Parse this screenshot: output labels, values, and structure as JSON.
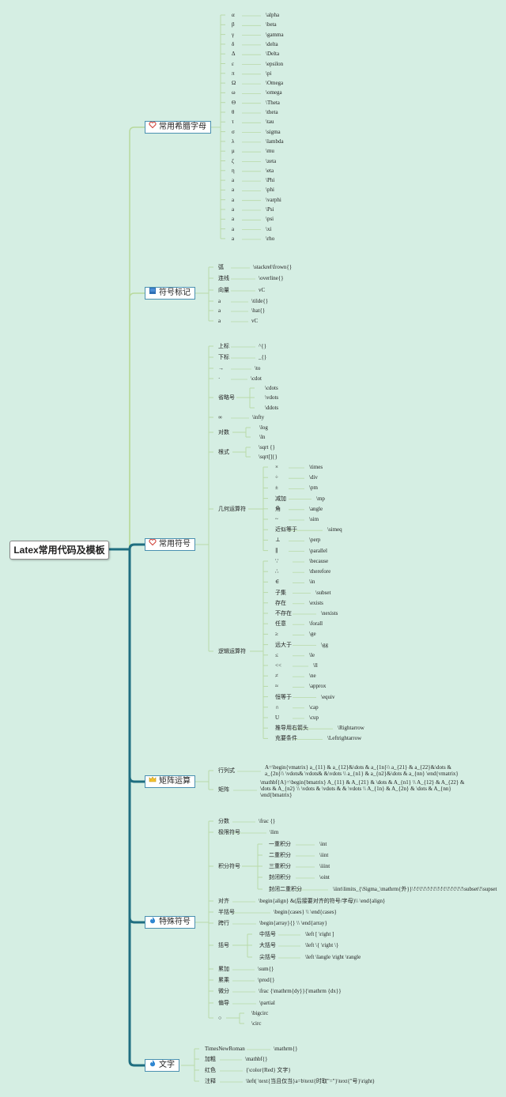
{
  "title": "Latex常用代码及模板",
  "colors": {
    "background": "#d5eee3",
    "trunk": "#1f6e80",
    "branch_light": "#b8d99c",
    "branch_green": "#8fc47a",
    "leaf_line": "#b9d9a8"
  },
  "categories": [
    {
      "label": "常用希腊字母",
      "icon": "heart-icon",
      "items": [
        {
          "a": "α",
          "b": "\\alpha"
        },
        {
          "a": "β",
          "b": "\\beta"
        },
        {
          "a": "γ",
          "b": "\\gamma"
        },
        {
          "a": "δ",
          "b": "\\delta"
        },
        {
          "a": "Δ",
          "b": "\\Delta"
        },
        {
          "a": "ε",
          "b": "\\epsilon"
        },
        {
          "a": "π",
          "b": "\\pi"
        },
        {
          "a": "Ω",
          "b": "\\Omega"
        },
        {
          "a": "ω",
          "b": "\\omega"
        },
        {
          "a": "Θ",
          "b": "\\Theta"
        },
        {
          "a": "θ",
          "b": "\\theta"
        },
        {
          "a": "τ",
          "b": "\\tau"
        },
        {
          "a": "σ",
          "b": "\\sigma"
        },
        {
          "a": "λ",
          "b": "\\lambda"
        },
        {
          "a": "μ",
          "b": "\\mu"
        },
        {
          "a": "ζ",
          "b": "\\zeta"
        },
        {
          "a": "η",
          "b": "\\eta"
        },
        {
          "a": "a",
          "b": "\\Phi"
        },
        {
          "a": "a",
          "b": "\\phi"
        },
        {
          "a": "a",
          "b": "\\varphi"
        },
        {
          "a": "a",
          "b": "\\Psi"
        },
        {
          "a": "a",
          "b": "\\psi"
        },
        {
          "a": "a",
          "b": "\\xi"
        },
        {
          "a": "a",
          "b": "\\rho"
        }
      ]
    },
    {
      "label": "符号标记",
      "icon": "flag-icon",
      "items": [
        {
          "a": "弧",
          "b": "\\stackrel\\frown{}"
        },
        {
          "a": "连线",
          "b": "\\overline{}"
        },
        {
          "a": "向量",
          "b": "vC"
        },
        {
          "a": "a",
          "b": "\\tilde{}"
        },
        {
          "a": "a",
          "b": "\\hat{}"
        },
        {
          "a": "a",
          "b": "vC"
        }
      ]
    },
    {
      "label": "常用符号",
      "icon": "heart-icon",
      "items": [
        {
          "a": "上标",
          "b": "^{}"
        },
        {
          "a": "下标",
          "b": "_{}"
        },
        {
          "a": "→",
          "b": "\\to"
        },
        {
          "a": "·",
          "b": "\\cdot"
        },
        {
          "a": "省略号",
          "children": [
            "\\cdots",
            "\\vdots",
            "\\ddots"
          ]
        },
        {
          "a": "∞",
          "b": "\\infty"
        },
        {
          "a": "对数",
          "children": [
            "\\log",
            "\\ln"
          ]
        },
        {
          "a": "根式",
          "children": [
            "\\sqrt {}",
            "\\sqrt[]{}"
          ]
        },
        {
          "a": "几何运算符",
          "children": [
            {
              "a": "×",
              "b": "\\times"
            },
            {
              "a": "÷",
              "b": "\\div"
            },
            {
              "a": "±",
              "b": "\\pm"
            },
            {
              "a": "减加",
              "b": "\\mp"
            },
            {
              "a": "角",
              "b": "\\angle"
            },
            {
              "a": "~",
              "b": "\\sim"
            },
            {
              "a": "近似等于",
              "b": "\\simeq"
            },
            {
              "a": "⊥",
              "b": "\\perp"
            },
            {
              "a": "∥",
              "b": "\\parallel"
            }
          ]
        },
        {
          "a": "逻辑运算符",
          "children": [
            {
              "a": "∵",
              "b": "\\because"
            },
            {
              "a": "∴",
              "b": "\\therefore"
            },
            {
              "a": "∈",
              "b": "\\in"
            },
            {
              "a": "子集",
              "b": "\\subset"
            },
            {
              "a": "存在",
              "b": "\\exists"
            },
            {
              "a": "不存在",
              "b": "\\nexists"
            },
            {
              "a": "任意",
              "b": "\\forall"
            },
            {
              "a": "≥",
              "b": "\\ge"
            },
            {
              "a": "远大于",
              "b": "\\gg"
            },
            {
              "a": "≤",
              "b": "\\le"
            },
            {
              "a": "<<",
              "b": "\\ll"
            },
            {
              "a": "≠",
              "b": "\\ne"
            },
            {
              "a": "≈",
              "b": "\\approx"
            },
            {
              "a": "恒等于",
              "b": "\\equiv"
            },
            {
              "a": "∩",
              "b": "\\cap"
            },
            {
              "a": "U",
              "b": "\\cup"
            },
            {
              "a": "推导用右箭头",
              "b": "\\Rightarrow"
            },
            {
              "a": "充要条件",
              "b": "\\Leftrightarrow"
            }
          ]
        }
      ]
    },
    {
      "label": "矩阵运算",
      "icon": "crown-icon",
      "items": [
        {
          "a": "行列式",
          "b": "A=\\begin{vmatrix} a_{11} & a_{12}&\\dots & a_{1n}\\\\ a_{21} & a_{22}&\\dots & a_{2n}\\\\ \\vdots& \\vdots& &\\vdots \\\\ a_{n1} & a_{n2}&\\dots & a_{nn} \\end{vmatrix}"
        },
        {
          "a": "矩阵",
          "b": "\\mathbf{A}=\\begin{bmatrix} A_{11} & A_{21} & \\dots & A_{n1} \\\\ A_{12} & A_{22} & \\dots & A_{n2} \\\\ \\vdots & \\vdots & & \\vdots \\\\ A_{1n} & A_{2n} & \\dots & A_{nn} \\end{bmatrix}"
        }
      ]
    },
    {
      "label": "特殊符号",
      "icon": "flame-icon",
      "items": [
        {
          "a": "分数",
          "b": "\\frac {}"
        },
        {
          "a": "极限符号",
          "b": "\\lim"
        },
        {
          "a": "积分符号",
          "children": [
            {
              "a": "一重积分",
              "b": "\\int"
            },
            {
              "a": "二重积分",
              "b": "\\iint"
            },
            {
              "a": "三重积分",
              "b": "\\iiint"
            },
            {
              "a": "封闭积分",
              "b": "\\oint"
            },
            {
              "a": "封闭二重积分",
              "b": "\\iint\\limits_{\\Sigma_\\mathrm{外}}\\!\\!\\!\\!\\!\\!\\!\\!\\!\\!\\!\\!\\!\\!\\!\\subset\\!\\supset"
            }
          ]
        },
        {
          "a": "对齐",
          "b": "\\begin{align} &(后接要对齐的符号/字母)\\\\ \\end{align}"
        },
        {
          "a": "半括号",
          "b": "\\begin{cases} \\\\ \\end{cases}"
        },
        {
          "a": "跨行",
          "b": "\\begin{array}{} \\\\ \\end{array}"
        },
        {
          "a": "括号",
          "children": [
            {
              "a": "中括号",
              "b": "\\left [ \\right ]"
            },
            {
              "a": "大括号",
              "b": "\\left \\{ \\right \\}"
            },
            {
              "a": "尖括号",
              "b": "\\left \\langle \\right \\rangle"
            }
          ]
        },
        {
          "a": "累加",
          "b": "\\sum{}"
        },
        {
          "a": "累乘",
          "b": "\\prod{}"
        },
        {
          "a": "微分",
          "b": "\\frac {\\mathrm{dy}}{\\mathrm {dx}}"
        },
        {
          "a": "偏导",
          "b": "\\partial"
        },
        {
          "a": "○",
          "children": [
            "\\bigcirc",
            "\\circ"
          ]
        }
      ]
    },
    {
      "label": "文字",
      "icon": "flame-icon",
      "items": [
        {
          "a": "TimesNewRoman",
          "b": "\\mathrm{}"
        },
        {
          "a": "加粗",
          "b": "\\mathbf{}"
        },
        {
          "a": "红色",
          "b": "{\\color{Red} 文字}"
        },
        {
          "a": "注释",
          "b": "\\left( \\text{当且仅当}a=b\\text{时取\"=\"}\\text{\"号}\\right)"
        }
      ]
    }
  ]
}
